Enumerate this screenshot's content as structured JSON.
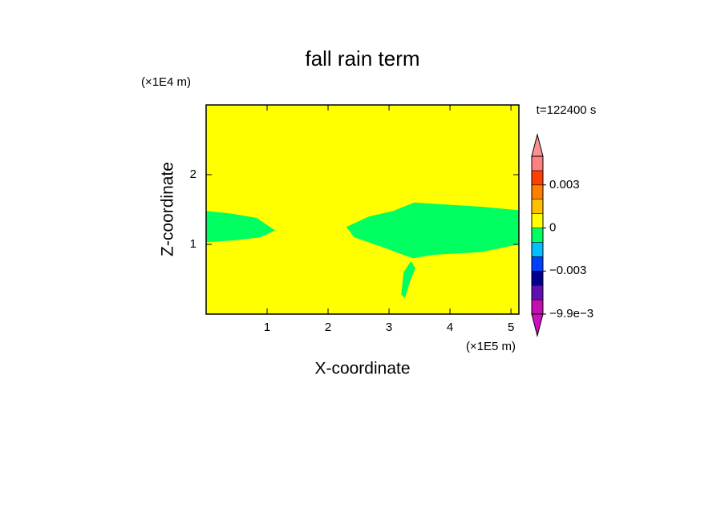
{
  "chart_data": {
    "type": "contour",
    "title": "fall rain term",
    "x_label": "X-coordinate",
    "y_label": "Z-coordinate",
    "x_unit": "(×1E5 m)",
    "y_unit": "(×1E4 m)",
    "annotation": "t=122400 s",
    "xlim": [
      0,
      5.13
    ],
    "ylim": [
      0,
      3
    ],
    "xticks": [
      1,
      2,
      3,
      4,
      5
    ],
    "yticks": [
      1,
      2
    ],
    "fill_color": "#ffff00",
    "regions": [
      {
        "color": "#00ff60",
        "points": [
          [
            0,
            1.48
          ],
          [
            0.43,
            1.44
          ],
          [
            0.83,
            1.38
          ],
          [
            1.13,
            1.2
          ],
          [
            0.89,
            1.1
          ],
          [
            0.5,
            1.06
          ],
          [
            0,
            1.03
          ]
        ]
      },
      {
        "color": "#00ff60",
        "points": [
          [
            2.3,
            1.25
          ],
          [
            2.67,
            1.4
          ],
          [
            3.07,
            1.48
          ],
          [
            3.41,
            1.6
          ],
          [
            4.51,
            1.54
          ],
          [
            5.13,
            1.49
          ],
          [
            5.13,
            1.0
          ],
          [
            4.51,
            0.89
          ],
          [
            3.72,
            0.85
          ],
          [
            3.39,
            0.8
          ],
          [
            2.8,
            0.99
          ],
          [
            2.43,
            1.1
          ]
        ]
      },
      {
        "color": "#00ff60",
        "points": [
          [
            3.36,
            0.76
          ],
          [
            3.43,
            0.66
          ],
          [
            3.33,
            0.43
          ],
          [
            3.26,
            0.23
          ],
          [
            3.2,
            0.28
          ],
          [
            3.24,
            0.6
          ]
        ]
      }
    ],
    "colorbar": {
      "boundaries": [
        -0.0099,
        -0.006,
        -0.004,
        -0.003,
        -0.002,
        -0.001,
        0,
        0.001,
        0.002,
        0.003,
        0.004,
        0.006
      ],
      "colors": [
        "#d010c0",
        "#c010b0",
        "#6010b0",
        "#000090",
        "#0040ff",
        "#00c0ff",
        "#00ff60",
        "#ffff00",
        "#ffc000",
        "#ff8000",
        "#ff4000",
        "#ff8080",
        "#ff9090"
      ],
      "ticks": [
        {
          "value": -0.0099,
          "label": "−9.9e−3"
        },
        {
          "value": -0.003,
          "label": "−0.003"
        },
        {
          "value": 0,
          "label": "0"
        },
        {
          "value": 0.003,
          "label": "0.003"
        }
      ]
    }
  }
}
